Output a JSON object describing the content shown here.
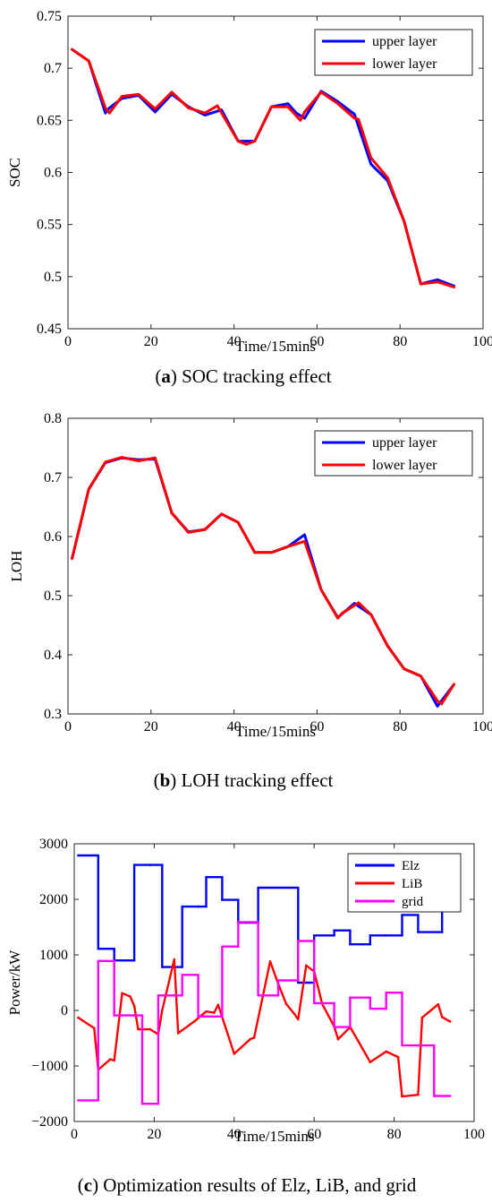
{
  "chart_data": [
    {
      "type": "line",
      "caption_prefix": "(",
      "caption_letter": "a",
      "caption_rest": ") SOC tracking effect",
      "xlabel": "Time/15mins",
      "ylabel": "SOC",
      "xlim": [
        0,
        100
      ],
      "ylim": [
        0.45,
        0.75
      ],
      "xticks": [
        0,
        20,
        40,
        60,
        80,
        100
      ],
      "xtick_labels": [
        "0",
        "20",
        "40",
        "60",
        "80",
        "100"
      ],
      "yticks": [
        0.45,
        0.5,
        0.55,
        0.6,
        0.65,
        0.7,
        0.75
      ],
      "ytick_labels": [
        "0.45",
        "0.5",
        "0.55",
        "0.6",
        "0.65",
        "0.7",
        "0.75"
      ],
      "grid": false,
      "legend_position": "top-right",
      "series": [
        {
          "name": "upper layer",
          "color": "#0000ff",
          "x": [
            1,
            5,
            9,
            10,
            13,
            17,
            21,
            25,
            29,
            33,
            37,
            41,
            45,
            49,
            53,
            55,
            57,
            61,
            65,
            69,
            73,
            77,
            81,
            85,
            89,
            93
          ],
          "y": [
            0.718,
            0.707,
            0.657,
            0.662,
            0.671,
            0.674,
            0.658,
            0.675,
            0.663,
            0.655,
            0.66,
            0.63,
            0.63,
            0.663,
            0.666,
            0.657,
            0.652,
            0.678,
            0.668,
            0.656,
            0.608,
            0.592,
            0.553,
            0.493,
            0.497,
            0.491
          ]
        },
        {
          "name": "lower layer",
          "color": "#ff0000",
          "x": [
            1,
            5,
            9,
            10,
            13,
            17,
            21,
            25,
            29,
            33,
            36,
            37,
            41,
            43,
            45,
            49,
            53,
            56,
            57,
            61,
            65,
            69,
            70,
            73,
            77,
            81,
            85,
            89,
            93
          ],
          "y": [
            0.718,
            0.707,
            0.662,
            0.657,
            0.673,
            0.675,
            0.661,
            0.677,
            0.662,
            0.657,
            0.664,
            0.657,
            0.63,
            0.627,
            0.63,
            0.663,
            0.663,
            0.65,
            0.658,
            0.677,
            0.666,
            0.652,
            0.651,
            0.614,
            0.595,
            0.553,
            0.493,
            0.495,
            0.49
          ]
        }
      ]
    },
    {
      "type": "line",
      "caption_prefix": "(",
      "caption_letter": "b",
      "caption_rest": ") LOH tracking effect",
      "xlabel": "Time/15mins",
      "ylabel": "LOH",
      "xlim": [
        0,
        100
      ],
      "ylim": [
        0.3,
        0.8
      ],
      "xticks": [
        0,
        20,
        40,
        60,
        80,
        100
      ],
      "xtick_labels": [
        "0",
        "20",
        "40",
        "60",
        "80",
        "100"
      ],
      "yticks": [
        0.3,
        0.4,
        0.5,
        0.6,
        0.7,
        0.8
      ],
      "ytick_labels": [
        "0.3",
        "0.4",
        "0.5",
        "0.6",
        "0.7",
        "0.8"
      ],
      "grid": false,
      "legend_position": "top-right",
      "series": [
        {
          "name": "upper layer",
          "color": "#0000ff",
          "x": [
            1,
            5,
            9,
            13,
            17,
            21,
            25,
            29,
            33,
            37,
            41,
            45,
            49,
            53,
            57,
            61,
            65,
            69,
            73,
            77,
            81,
            85,
            89,
            93
          ],
          "y": [
            0.563,
            0.68,
            0.725,
            0.733,
            0.73,
            0.731,
            0.64,
            0.608,
            0.612,
            0.638,
            0.624,
            0.573,
            0.573,
            0.583,
            0.603,
            0.51,
            0.463,
            0.487,
            0.468,
            0.415,
            0.376,
            0.364,
            0.313,
            0.35
          ]
        },
        {
          "name": "lower layer",
          "color": "#ff0000",
          "x": [
            1,
            5,
            9,
            13,
            17,
            21,
            25,
            29,
            33,
            37,
            41,
            45,
            49,
            53,
            57,
            61,
            65,
            66,
            70,
            73,
            77,
            81,
            85,
            89,
            90,
            93
          ],
          "y": [
            0.563,
            0.68,
            0.726,
            0.734,
            0.728,
            0.733,
            0.64,
            0.607,
            0.612,
            0.638,
            0.624,
            0.573,
            0.573,
            0.583,
            0.592,
            0.51,
            0.462,
            0.47,
            0.488,
            0.468,
            0.415,
            0.376,
            0.364,
            0.322,
            0.317,
            0.35
          ]
        }
      ]
    },
    {
      "type": "line",
      "caption_prefix": "(",
      "caption_letter": "c",
      "caption_rest": ") Optimization results of Elz, LiB, and grid",
      "xlabel": "Time/15mins",
      "ylabel": "Power/kW",
      "xlim": [
        0,
        100
      ],
      "ylim": [
        -2000,
        3000
      ],
      "xticks": [
        0,
        20,
        40,
        60,
        80,
        100
      ],
      "xtick_labels": [
        "0",
        "20",
        "40",
        "60",
        "80",
        "100"
      ],
      "yticks": [
        -2000,
        -1000,
        0,
        1000,
        2000,
        3000
      ],
      "ytick_labels": [
        "−2000",
        "−1000",
        "0",
        "1000",
        "2000",
        "3000"
      ],
      "grid": false,
      "legend_position": "top-right",
      "series": [
        {
          "name": "Elz",
          "color": "#0000ff",
          "x": [
            1,
            6,
            6,
            10,
            10,
            15,
            15,
            19,
            19,
            22,
            22,
            25,
            25,
            27,
            27,
            31,
            31,
            33,
            33,
            37,
            37,
            41,
            41,
            43,
            43,
            46,
            46,
            56,
            56,
            60,
            60,
            65,
            65,
            69,
            69,
            74,
            74,
            78,
            78,
            82,
            82,
            86,
            86,
            92,
            92,
            94
          ],
          "y": [
            2790,
            2790,
            1110,
            1110,
            900,
            900,
            2620,
            2620,
            2620,
            2620,
            780,
            780,
            780,
            780,
            1870,
            1870,
            1870,
            1870,
            2400,
            2400,
            1990,
            1990,
            1580,
            1580,
            1580,
            1580,
            2210,
            2210,
            500,
            500,
            1350,
            1350,
            1440,
            1440,
            1190,
            1190,
            1350,
            1350,
            1350,
            1350,
            1720,
            1720,
            1410,
            1410,
            2520,
            2520
          ]
        },
        {
          "name": "LiB",
          "color": "#ff0000",
          "x": [
            1,
            5,
            6,
            9,
            10,
            12,
            14,
            15,
            16,
            19,
            21,
            22,
            25,
            26,
            30,
            33,
            35,
            36,
            40,
            44,
            45,
            49,
            51,
            53,
            55,
            56,
            58,
            60,
            62,
            65,
            66,
            69,
            71,
            74,
            78,
            81,
            82,
            86,
            87,
            91,
            92,
            94
          ],
          "y": [
            -130,
            -320,
            -1070,
            -880,
            -900,
            310,
            250,
            80,
            -340,
            -340,
            -430,
            0,
            920,
            -410,
            -200,
            -20,
            -40,
            100,
            -780,
            -520,
            -490,
            880,
            480,
            120,
            -60,
            -160,
            810,
            700,
            120,
            -290,
            -520,
            -300,
            -550,
            -930,
            -740,
            -840,
            -1550,
            -1520,
            -130,
            110,
            -120,
            -200
          ]
        },
        {
          "name": "grid",
          "color": "#ff00ff",
          "x": [
            1,
            6,
            6,
            10,
            10,
            12,
            12,
            15,
            15,
            17,
            17,
            21,
            21,
            25,
            25,
            27,
            27,
            31,
            31,
            33,
            33,
            37,
            37,
            41,
            41,
            46,
            46,
            51,
            51,
            56,
            56,
            60,
            60,
            65,
            65,
            69,
            69,
            74,
            74,
            78,
            78,
            82,
            82,
            86,
            86,
            90,
            90,
            94
          ],
          "y": [
            -1620,
            -1620,
            890,
            890,
            -90,
            -90,
            -90,
            -90,
            -90,
            -90,
            -1680,
            -1680,
            270,
            270,
            270,
            270,
            640,
            640,
            -110,
            -110,
            -110,
            -110,
            1150,
            1150,
            1590,
            1590,
            270,
            270,
            540,
            540,
            1250,
            1250,
            130,
            130,
            -300,
            -300,
            230,
            230,
            30,
            30,
            320,
            320,
            -630,
            -630,
            -630,
            -630,
            -1540,
            -1540
          ]
        }
      ]
    }
  ]
}
